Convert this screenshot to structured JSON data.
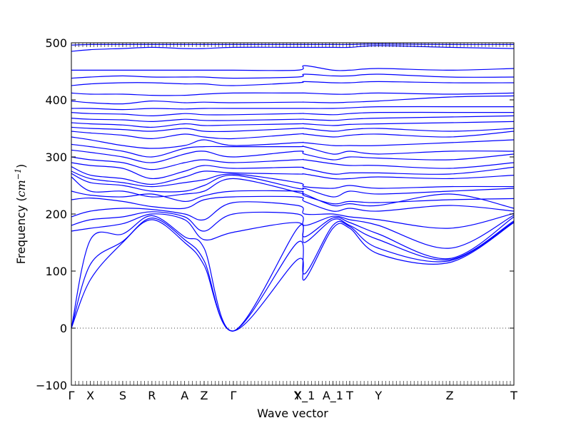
{
  "chart_data": {
    "type": "line",
    "title": "",
    "xlabel": "Wave vector",
    "ylabel": "Frequency (cm⁻¹)",
    "ylabel_parts": {
      "main": "Frequency (",
      "unit": "cm",
      "exp": "−1",
      "close": ")"
    },
    "ylim": [
      -100,
      500
    ],
    "yticks": [
      -100,
      0,
      100,
      200,
      300,
      400,
      500
    ],
    "ytick_labels": [
      "−100",
      "0",
      "100",
      "200",
      "300",
      "400",
      "500"
    ],
    "xlim": [
      0,
      1
    ],
    "zero_line": true,
    "grid": false,
    "color": "#0000ff",
    "high_symmetry_points": [
      {
        "label": "Γ",
        "x": 0.0
      },
      {
        "label": "X",
        "x": 0.043
      },
      {
        "label": "S",
        "x": 0.116
      },
      {
        "label": "R",
        "x": 0.182
      },
      {
        "label": "A",
        "x": 0.256
      },
      {
        "label": "Z",
        "x": 0.3
      },
      {
        "label": "Γ",
        "x": 0.366
      },
      {
        "label": "Y",
        "x": 0.511
      },
      {
        "label": "X_1",
        "x": 0.527
      },
      {
        "label": "A_1",
        "x": 0.591
      },
      {
        "label": "T",
        "x": 0.629
      },
      {
        "label": "Y",
        "x": 0.694
      },
      {
        "label": "Z",
        "x": 0.855
      },
      {
        "label": "T",
        "x": 1.0
      }
    ],
    "series": [
      {
        "values": [
          0,
          85,
          150,
          190,
          150,
          110,
          -5,
          120,
          85,
          175,
          175,
          130,
          115,
          185
        ]
      },
      {
        "values": [
          0,
          112,
          152,
          193,
          155,
          118,
          -5,
          150,
          95,
          180,
          178,
          140,
          118,
          186
        ]
      },
      {
        "values": [
          0,
          155,
          165,
          197,
          160,
          140,
          -5,
          175,
          150,
          190,
          180,
          155,
          120,
          188
        ]
      },
      {
        "values": [
          170,
          175,
          183,
          200,
          190,
          155,
          168,
          185,
          160,
          193,
          185,
          165,
          122,
          195
        ]
      },
      {
        "values": [
          180,
          190,
          195,
          204,
          195,
          170,
          200,
          200,
          180,
          196,
          190,
          180,
          140,
          198
        ]
      },
      {
        "values": [
          195,
          205,
          210,
          208,
          200,
          190,
          220,
          215,
          200,
          200,
          195,
          190,
          175,
          201
        ]
      },
      {
        "values": [
          225,
          228,
          222,
          213,
          210,
          225,
          230,
          230,
          222,
          205,
          210,
          205,
          215,
          205
        ]
      },
      {
        "values": [
          240,
          233,
          230,
          235,
          222,
          232,
          240,
          240,
          235,
          215,
          218,
          215,
          235,
          210
        ]
      },
      {
        "values": [
          265,
          240,
          240,
          230,
          235,
          240,
          262,
          238,
          232,
          218,
          222,
          220,
          225,
          227
        ]
      },
      {
        "values": [
          271,
          255,
          250,
          240,
          240,
          250,
          268,
          245,
          245,
          230,
          240,
          235,
          240,
          245
        ]
      },
      {
        "values": [
          275,
          262,
          255,
          248,
          255,
          260,
          270,
          255,
          248,
          245,
          250,
          245,
          248,
          248
        ]
      },
      {
        "values": [
          283,
          268,
          262,
          252,
          265,
          275,
          272,
          270,
          270,
          262,
          262,
          265,
          262,
          268
        ]
      },
      {
        "values": [
          290,
          285,
          280,
          262,
          275,
          285,
          280,
          282,
          280,
          270,
          272,
          272,
          270,
          282
        ]
      },
      {
        "values": [
          300,
          295,
          290,
          278,
          290,
          295,
          290,
          295,
          295,
          288,
          285,
          285,
          280,
          290
        ]
      },
      {
        "values": [
          312,
          308,
          300,
          290,
          305,
          310,
          300,
          310,
          305,
          295,
          300,
          298,
          295,
          305
        ]
      },
      {
        "values": [
          322,
          318,
          310,
          300,
          315,
          318,
          318,
          318,
          318,
          305,
          310,
          305,
          310,
          310
        ]
      },
      {
        "values": [
          335,
          330,
          320,
          315,
          320,
          330,
          320,
          325,
          325,
          320,
          320,
          320,
          325,
          330
        ]
      },
      {
        "values": [
          345,
          342,
          338,
          332,
          340,
          335,
          332,
          340,
          340,
          335,
          338,
          340,
          335,
          345
        ]
      },
      {
        "values": [
          352,
          350,
          348,
          345,
          350,
          345,
          345,
          350,
          350,
          345,
          348,
          350,
          345,
          350
        ]
      },
      {
        "values": [
          360,
          358,
          356,
          352,
          358,
          355,
          356,
          358,
          358,
          355,
          357,
          358,
          360,
          362
        ]
      },
      {
        "values": [
          368,
          366,
          365,
          362,
          366,
          364,
          364,
          366,
          366,
          364,
          366,
          368,
          370,
          372
        ]
      },
      {
        "values": [
          378,
          376,
          375,
          372,
          376,
          374,
          374,
          376,
          376,
          374,
          376,
          378,
          378,
          378
        ]
      },
      {
        "values": [
          385,
          385,
          383,
          385,
          384,
          385,
          385,
          385,
          385,
          385,
          386,
          388,
          388,
          388
        ]
      },
      {
        "values": [
          398,
          395,
          393,
          398,
          395,
          396,
          395,
          396,
          396,
          395,
          396,
          398,
          405,
          407
        ]
      },
      {
        "values": [
          412,
          410,
          410,
          408,
          408,
          410,
          412,
          412,
          412,
          410,
          410,
          412,
          410,
          412
        ]
      },
      {
        "values": [
          425,
          428,
          430,
          430,
          428,
          428,
          425,
          430,
          432,
          430,
          430,
          432,
          430,
          430
        ]
      },
      {
        "values": [
          438,
          440,
          442,
          440,
          440,
          440,
          438,
          440,
          445,
          442,
          442,
          445,
          440,
          440
        ]
      },
      {
        "values": [
          452,
          452,
          452,
          452,
          452,
          452,
          452,
          452,
          460,
          452,
          452,
          455,
          452,
          455
        ]
      },
      {
        "values": [
          485,
          488,
          490,
          492,
          490,
          490,
          492,
          492,
          492,
          492,
          492,
          495,
          492,
          490
        ]
      },
      {
        "values": [
          496,
          497,
          497,
          497,
          497,
          497,
          497,
          497,
          497,
          497,
          497,
          498,
          497,
          497
        ]
      }
    ]
  }
}
